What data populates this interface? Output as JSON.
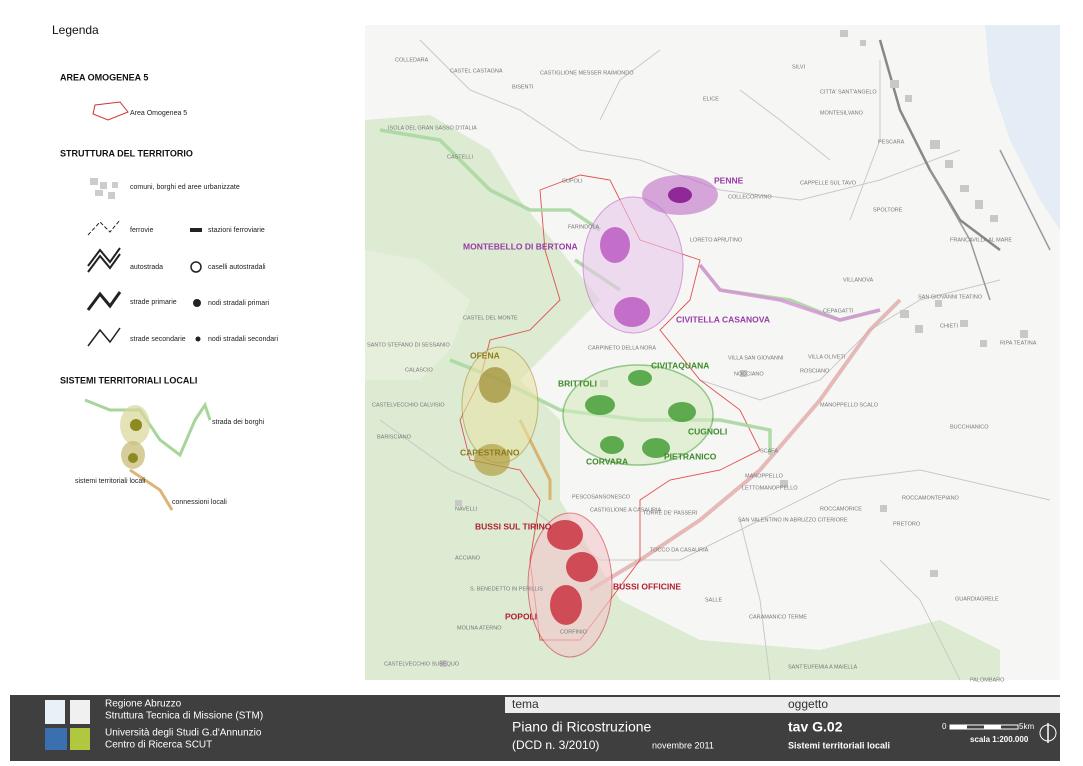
{
  "legend": {
    "title": "Legenda",
    "sections": [
      {
        "heading": "AREA OMOGENEA 5",
        "items": [
          "Area Omogenea 5"
        ]
      },
      {
        "heading": "STRUTTURA DEL TERRITORIO",
        "items": [
          "comuni, borghi ed aree urbanizzate",
          "ferrovie",
          "stazioni ferroviarie",
          "autostrada",
          "caselli autostradali",
          "strade primarie",
          "nodi stradali primari",
          "strade secondarie",
          "nodi stradali secondari"
        ]
      },
      {
        "heading": "SISTEMI TERRITORIALI LOCALI",
        "items": [
          "strada dei borghi",
          "sistemi territoriali locali",
          "connessioni locali"
        ]
      }
    ]
  },
  "map": {
    "labels": [
      {
        "text": "MONTEBELLO DI BERTONA",
        "color": "#9a3aa8"
      },
      {
        "text": "PENNE",
        "color": "#9a3aa8"
      },
      {
        "text": "CIVITELLA CASANOVA",
        "color": "#9a3aa8"
      },
      {
        "text": "OFENA",
        "color": "#8a7a20"
      },
      {
        "text": "CAPESTRANO",
        "color": "#8a7a20"
      },
      {
        "text": "BRITTOLI",
        "color": "#3c8a2a"
      },
      {
        "text": "CIVITAQUANA",
        "color": "#3c8a2a"
      },
      {
        "text": "CUGNOLI",
        "color": "#3c8a2a"
      },
      {
        "text": "CORVARA",
        "color": "#3c8a2a"
      },
      {
        "text": "PIETRANICO",
        "color": "#3c8a2a"
      },
      {
        "text": "BUSSI SUL TIRINO",
        "color": "#b02030"
      },
      {
        "text": "BUSSI OFFICINE",
        "color": "#b02030"
      },
      {
        "text": "POPOLI",
        "color": "#b02030"
      }
    ],
    "towns": [
      "COLLEDARA",
      "CASTEL CASTAGNA",
      "CASTIGLIONE MESSER RAIMONDO",
      "BISENTI",
      "ELICE",
      "SILVI",
      "CITTA' SANT'ANGELO",
      "MONTESILVANO",
      "PESCARA",
      "CAPPELLE SUL TAVO",
      "SPOLTORE",
      "COLLECORVINO",
      "LORETO APRUTINO",
      "FARINDOLA",
      "ISOLA DEL GRAN SASSO D'ITALIA",
      "CASTELLI",
      "VILLANOVA",
      "SAN GIOVANNI TEATINO",
      "CHIETI",
      "CEPAGATTI",
      "RIPA TEATINA",
      "CASTEL DEL MONTE",
      "SANTO STEFANO DI SESSANIO",
      "CALASCIO",
      "CASTELVECCHIO CALVISIO",
      "BARISCIANO",
      "CARPINETO DELLA NORA",
      "VILLA SAN GIOVANNI",
      "NOCCIANO",
      "VILLA OLIVETI",
      "ROSCIANO",
      "MANOPPELLO SCALO",
      "BUCCHIANICO",
      "SCAFA",
      "MANOPPELLO",
      "LETTOMANOPPELLO",
      "ROCCAMONTEPIANO",
      "ROCCAMORICE",
      "PRETORO",
      "SAN VALENTINO IN ABRUZZO CITERIORE",
      "TORRE DE' PASSERI",
      "TOCCO DA CASAURIA",
      "PESCOSANSONESCO",
      "CASTIGLIONE A CASAURIA",
      "NAVELLI",
      "SALLE",
      "CARAMANICO TERME",
      "SANT'EUFEMIA A MAIELLA",
      "S. BENEDETTO IN PERILLIS",
      "MOLINA ATERNO",
      "ACCIANO",
      "CASTELVECCHIO SUBEQUO",
      "CORFINIO",
      "GUARDIAGRELE",
      "PALOMBARO",
      "FRANCAVILLA AL MARE",
      "CUPOLI"
    ]
  },
  "footer": {
    "institution": [
      "Regione Abruzzo",
      "Struttura Tecnica di Missione (STM)",
      "Università degli Studi G.d'Annunzio",
      "Centro di  Ricerca SCUT"
    ],
    "tema_label": "tema",
    "tema": "Piano di Ricostruzione",
    "decree": "(DCD n. 3/2010)",
    "date": "novembre 2011",
    "oggetto_label": "oggetto",
    "sheet": "tav G.02",
    "sheet_title": "Sistemi territoriali locali",
    "scale_start": "0",
    "scale_end": "5km",
    "scale": "scala 1:200.000"
  }
}
